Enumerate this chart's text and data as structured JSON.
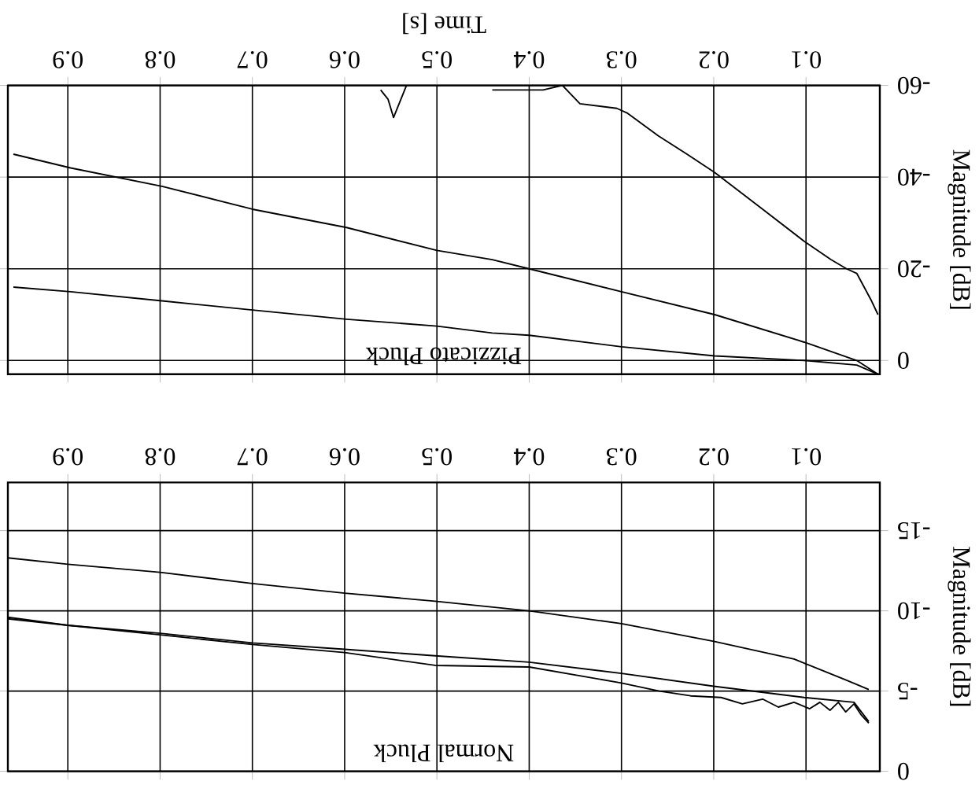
{
  "chart_data": [
    {
      "type": "line",
      "title": "Pizzicato Pluck",
      "xlabel": "Time [s]",
      "ylabel": "Magnitude [dB]",
      "xlim": [
        0.965,
        0.02
      ],
      "ylim": [
        3,
        -60
      ],
      "xticks": [
        0.1,
        0.2,
        0.3,
        0.4,
        0.5,
        0.6,
        0.7,
        0.8,
        0.9
      ],
      "yticks": [
        -60,
        -40,
        -20,
        0
      ],
      "grid": true,
      "series": [
        {
          "color": "#000000",
          "x": [
            0.022,
            0.029,
            0.037,
            0.045,
            0.056,
            0.073,
            0.102,
            0.147,
            0.199,
            0.229,
            0.26,
            0.294,
            0.305,
            0.345,
            0.364,
            0.385,
            0.4,
            0.42,
            0.44,
            0.46,
            0.533,
            0.547,
            0.553,
            0.561
          ],
          "values": [
            -10,
            -13,
            -16,
            -19,
            -20,
            -22,
            -26,
            -33,
            -41,
            -45,
            -49,
            -54,
            -55,
            -56,
            -60,
            -59,
            -59,
            -59,
            -59,
            null,
            -60,
            -53,
            -57,
            -59
          ]
        },
        {
          "color": "#000000",
          "x": [
            0.022,
            0.045,
            0.102,
            0.199,
            0.3,
            0.4,
            0.44,
            0.5,
            0.598,
            0.7,
            0.798,
            0.897,
            0.959
          ],
          "values": [
            3,
            0,
            -4,
            -10,
            -15,
            -20,
            -22,
            -24,
            -29,
            -33,
            -38,
            -42,
            -45
          ]
        },
        {
          "color": "#000000",
          "x": [
            0.022,
            0.045,
            0.102,
            0.199,
            0.3,
            0.4,
            0.44,
            0.5,
            0.598,
            0.7,
            0.798,
            0.897,
            0.959
          ],
          "values": [
            3,
            1,
            0,
            -1,
            -3,
            -5.5,
            -6,
            -7.5,
            -9,
            -11,
            -13,
            -15,
            -16
          ]
        }
      ]
    },
    {
      "type": "line",
      "title": "Normal Pluck",
      "ylabel": "Magnitude [dB]",
      "xlim": [
        0.965,
        0.02
      ],
      "ylim": [
        0,
        -18
      ],
      "xticks": [
        0.1,
        0.2,
        0.3,
        0.4,
        0.5,
        0.6,
        0.7,
        0.8,
        0.9
      ],
      "yticks": [
        -15,
        -10,
        -5,
        0
      ],
      "grid": true,
      "series": [
        {
          "color": "#000000",
          "x": [
            0.032,
            0.057,
            0.113,
            0.2,
            0.3,
            0.4,
            0.502,
            0.6,
            0.7,
            0.8,
            0.9,
            0.965
          ],
          "values": [
            -5.1,
            -5.7,
            -7.0,
            -8.1,
            -9.2,
            -10.0,
            -10.6,
            -11.1,
            -11.7,
            -12.4,
            -12.9,
            -13.3
          ]
        },
        {
          "color": "#000000",
          "x": [
            0.032,
            0.048,
            0.102,
            0.2,
            0.3,
            0.4,
            0.502,
            0.6,
            0.7,
            0.8,
            0.9,
            0.965
          ],
          "values": [
            -3.1,
            -4.3,
            -4.6,
            -5.3,
            -6.1,
            -6.8,
            -7.2,
            -7.6,
            -8.0,
            -8.6,
            -9.1,
            -9.6
          ]
        },
        {
          "color": "#000000",
          "x": [
            0.032,
            0.04,
            0.048,
            0.057,
            0.065,
            0.074,
            0.085,
            0.096,
            0.113,
            0.13,
            0.147,
            0.169,
            0.192,
            0.225,
            0.259,
            0.3,
            0.4,
            0.502,
            0.6,
            0.7,
            0.8,
            0.9,
            0.965
          ],
          "values": [
            -3.0,
            -3.5,
            -4.2,
            -3.7,
            -4.3,
            -3.8,
            -4.3,
            -3.9,
            -4.3,
            -4.0,
            -4.5,
            -4.2,
            -4.6,
            -4.7,
            -5.0,
            -5.5,
            -6.5,
            -6.6,
            -7.4,
            -7.9,
            -8.5,
            -9.1,
            -9.5
          ]
        }
      ]
    }
  ]
}
